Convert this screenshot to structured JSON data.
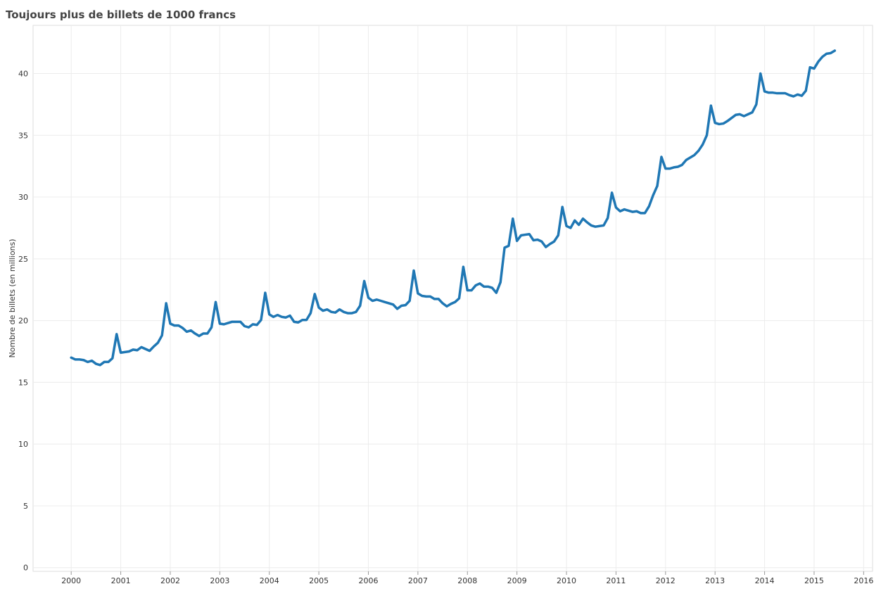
{
  "chart_data": {
    "type": "line",
    "title": "Toujours plus de billets de 1000 francs",
    "y_label": "Nombre de billets (en millions)",
    "color": "#1f77b4",
    "grid": true,
    "xlim": [
      1999.23,
      2016.18
    ],
    "ylim": [
      -0.3,
      43.9
    ],
    "xticks": [
      2000,
      2001,
      2002,
      2003,
      2004,
      2005,
      2006,
      2007,
      2008,
      2009,
      2010,
      2011,
      2012,
      2013,
      2014,
      2015,
      2016
    ],
    "yticks": [
      0,
      5,
      10,
      15,
      20,
      25,
      30,
      35,
      40
    ],
    "x": [
      2000,
      2000.083,
      2000.167,
      2000.25,
      2000.333,
      2000.417,
      2000.5,
      2000.583,
      2000.667,
      2000.75,
      2000.833,
      2000.917,
      2001,
      2001.083,
      2001.167,
      2001.25,
      2001.333,
      2001.417,
      2001.5,
      2001.583,
      2001.667,
      2001.75,
      2001.833,
      2001.917,
      2002,
      2002.083,
      2002.167,
      2002.25,
      2002.333,
      2002.417,
      2002.5,
      2002.583,
      2002.667,
      2002.75,
      2002.833,
      2002.917,
      2003,
      2003.083,
      2003.167,
      2003.25,
      2003.333,
      2003.417,
      2003.5,
      2003.583,
      2003.667,
      2003.75,
      2003.833,
      2003.917,
      2004,
      2004.083,
      2004.167,
      2004.25,
      2004.333,
      2004.417,
      2004.5,
      2004.583,
      2004.667,
      2004.75,
      2004.833,
      2004.917,
      2005,
      2005.083,
      2005.167,
      2005.25,
      2005.333,
      2005.417,
      2005.5,
      2005.583,
      2005.667,
      2005.75,
      2005.833,
      2005.917,
      2006,
      2006.083,
      2006.167,
      2006.25,
      2006.333,
      2006.417,
      2006.5,
      2006.583,
      2006.667,
      2006.75,
      2006.833,
      2006.917,
      2007,
      2007.083,
      2007.167,
      2007.25,
      2007.333,
      2007.417,
      2007.5,
      2007.583,
      2007.667,
      2007.75,
      2007.833,
      2007.917,
      2008,
      2008.083,
      2008.167,
      2008.25,
      2008.333,
      2008.417,
      2008.5,
      2008.583,
      2008.667,
      2008.75,
      2008.833,
      2008.917,
      2009,
      2009.083,
      2009.167,
      2009.25,
      2009.333,
      2009.417,
      2009.5,
      2009.583,
      2009.667,
      2009.75,
      2009.833,
      2009.917,
      2010,
      2010.083,
      2010.167,
      2010.25,
      2010.333,
      2010.417,
      2010.5,
      2010.583,
      2010.667,
      2010.75,
      2010.833,
      2010.917,
      2011,
      2011.083,
      2011.167,
      2011.25,
      2011.333,
      2011.417,
      2011.5,
      2011.583,
      2011.667,
      2011.75,
      2011.833,
      2011.917,
      2012,
      2012.083,
      2012.167,
      2012.25,
      2012.333,
      2012.417,
      2012.5,
      2012.583,
      2012.667,
      2012.75,
      2012.833,
      2012.917,
      2013,
      2013.083,
      2013.167,
      2013.25,
      2013.333,
      2013.417,
      2013.5,
      2013.583,
      2013.667,
      2013.75,
      2013.833,
      2013.917,
      2014,
      2014.083,
      2014.167,
      2014.25,
      2014.333,
      2014.417,
      2014.5,
      2014.583,
      2014.667,
      2014.75,
      2014.833,
      2014.917,
      2015,
      2015.083,
      2015.167,
      2015.25,
      2015.333,
      2015.417
    ],
    "values": [
      17.0,
      16.85,
      16.85,
      16.8,
      16.65,
      16.75,
      16.5,
      16.4,
      16.65,
      16.65,
      16.95,
      18.9,
      17.4,
      17.45,
      17.5,
      17.65,
      17.6,
      17.85,
      17.7,
      17.55,
      17.9,
      18.2,
      18.8,
      21.4,
      19.75,
      19.6,
      19.6,
      19.4,
      19.1,
      19.2,
      18.95,
      18.75,
      18.95,
      18.95,
      19.45,
      21.5,
      19.75,
      19.7,
      19.8,
      19.9,
      19.9,
      19.9,
      19.55,
      19.45,
      19.7,
      19.65,
      20.05,
      22.25,
      20.5,
      20.3,
      20.45,
      20.3,
      20.25,
      20.4,
      19.9,
      19.85,
      20.05,
      20.05,
      20.6,
      22.15,
      21.05,
      20.8,
      20.9,
      20.7,
      20.65,
      20.9,
      20.7,
      20.6,
      20.6,
      20.7,
      21.2,
      23.2,
      21.85,
      21.6,
      21.7,
      21.6,
      21.5,
      21.4,
      21.3,
      20.95,
      21.2,
      21.25,
      21.6,
      24.05,
      22.2,
      22.0,
      21.95,
      21.95,
      21.75,
      21.75,
      21.4,
      21.15,
      21.35,
      21.5,
      21.8,
      24.35,
      22.45,
      22.45,
      22.85,
      23.0,
      22.75,
      22.75,
      22.65,
      22.25,
      23.1,
      25.9,
      26.05,
      28.25,
      26.45,
      26.9,
      26.95,
      27.0,
      26.5,
      26.55,
      26.4,
      25.95,
      26.2,
      26.4,
      26.9,
      29.2,
      27.65,
      27.5,
      28.1,
      27.75,
      28.25,
      27.95,
      27.7,
      27.6,
      27.65,
      27.7,
      28.3,
      30.35,
      29.15,
      28.85,
      29.0,
      28.9,
      28.8,
      28.85,
      28.7,
      28.7,
      29.25,
      30.15,
      30.9,
      33.25,
      32.3,
      32.3,
      32.4,
      32.45,
      32.6,
      33.0,
      33.2,
      33.4,
      33.75,
      34.25,
      35.0,
      37.4,
      36.0,
      35.9,
      35.95,
      36.15,
      36.4,
      36.65,
      36.7,
      36.55,
      36.7,
      36.85,
      37.5,
      40.0,
      38.55,
      38.45,
      38.45,
      38.4,
      38.4,
      38.4,
      38.25,
      38.15,
      38.3,
      38.2,
      38.6,
      40.5,
      40.4,
      40.95,
      41.35,
      41.6,
      41.65,
      41.85
    ]
  }
}
